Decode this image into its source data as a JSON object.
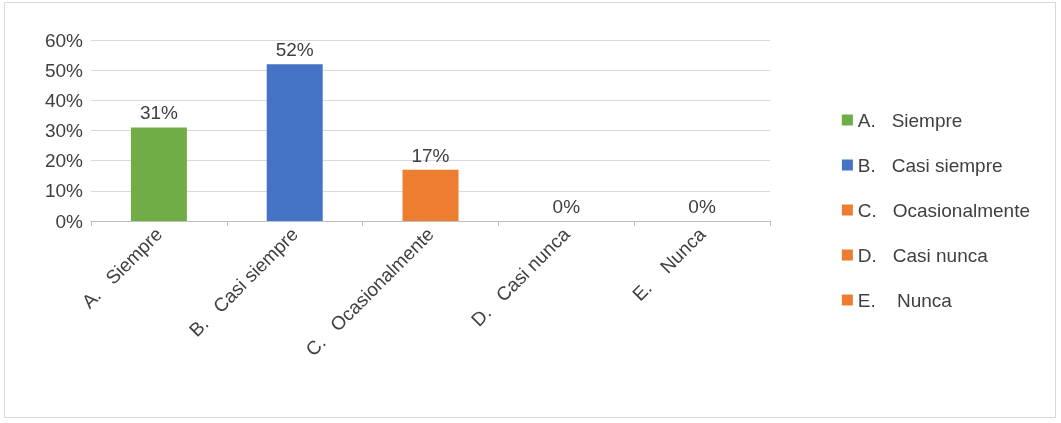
{
  "chart_data": {
    "type": "bar",
    "categories": [
      "A.   Siempre",
      "B.   Casi siempre",
      "C.   Ocasionalmente",
      "D.   Casi nunca",
      "E.    Nunca"
    ],
    "series": [
      {
        "name": "A.   Siempre",
        "color": "#70ad47",
        "values": [
          31,
          null,
          null,
          null,
          null
        ],
        "value_labels": [
          "31%",
          null,
          null,
          null,
          null
        ]
      },
      {
        "name": "B.   Casi siempre",
        "color": "#4472c4",
        "values": [
          null,
          52,
          null,
          null,
          null
        ],
        "value_labels": [
          null,
          "52%",
          null,
          null,
          null
        ]
      },
      {
        "name": "C.   Ocasionalmente",
        "color": "#ed7d31",
        "values": [
          null,
          null,
          17,
          null,
          null
        ],
        "value_labels": [
          null,
          null,
          "17%",
          null,
          null
        ]
      },
      {
        "name": "D.   Casi nunca",
        "color": "#ed7d31",
        "values": [
          null,
          null,
          null,
          0,
          null
        ],
        "value_labels": [
          null,
          null,
          null,
          "0%",
          null
        ]
      },
      {
        "name": "E.    Nunca",
        "color": "#ed7d31",
        "values": [
          null,
          null,
          null,
          null,
          0
        ],
        "value_labels": [
          null,
          null,
          null,
          null,
          "0%"
        ]
      }
    ],
    "ylim": [
      0,
      60
    ],
    "yticks": [
      {
        "value": 0,
        "label": "0%"
      },
      {
        "value": 10,
        "label": "10%"
      },
      {
        "value": 20,
        "label": "20%"
      },
      {
        "value": 30,
        "label": "30%"
      },
      {
        "value": 40,
        "label": "40%"
      },
      {
        "value": 50,
        "label": "50%"
      },
      {
        "value": 60,
        "label": "60%"
      }
    ],
    "grid": "y",
    "legend": "right"
  }
}
